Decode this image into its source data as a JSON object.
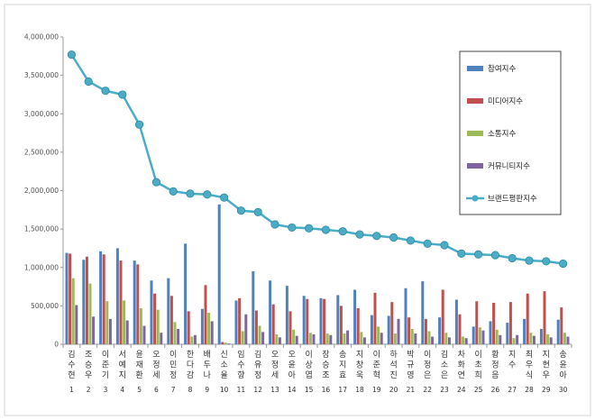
{
  "chart_data": {
    "type": "bar",
    "title": "",
    "xlabel": "",
    "ylabel": "",
    "ylim": [
      0,
      4000000
    ],
    "yticks": [
      "0",
      "500,000",
      "1,000,000",
      "1,500,000",
      "2,000,000",
      "2,500,000",
      "3,000,000",
      "3,500,000",
      "4,000,000"
    ],
    "grid": false,
    "legend_position": "right",
    "categories": [
      "김수현",
      "조승우",
      "이준기",
      "서예지",
      "윤재환",
      "오정세",
      "이민정",
      "한다감",
      "배두나",
      "신소율",
      "임수향",
      "김유정",
      "오정세",
      "오윤아",
      "이상엽",
      "장승조",
      "송지효",
      "지창욱",
      "이준혁",
      "하석진",
      "박규영",
      "이정은",
      "김소은",
      "차화연",
      "이초희",
      "황정음",
      "지수",
      "최우식",
      "지현우",
      "송윤아"
    ],
    "ranks": [
      "1",
      "2",
      "3",
      "4",
      "5",
      "6",
      "7",
      "8",
      "9",
      "10",
      "11",
      "12",
      "13",
      "14",
      "15",
      "16",
      "17",
      "18",
      "19",
      "20",
      "21",
      "22",
      "23",
      "24",
      "25",
      "26",
      "27",
      "28",
      "29",
      "30"
    ],
    "series": [
      {
        "name": "참여지수",
        "color": "#4F81BD",
        "values": [
          1190000,
          1100000,
          1210000,
          1250000,
          1090000,
          830000,
          860000,
          1310000,
          460000,
          1820000,
          570000,
          950000,
          830000,
          760000,
          630000,
          600000,
          640000,
          710000,
          380000,
          370000,
          730000,
          820000,
          350000,
          580000,
          230000,
          300000,
          280000,
          330000,
          200000,
          320000
        ]
      },
      {
        "name": "미디어지수",
        "color": "#C0504D",
        "values": [
          1180000,
          1140000,
          1170000,
          1090000,
          1040000,
          660000,
          630000,
          430000,
          770000,
          30000,
          600000,
          440000,
          520000,
          430000,
          590000,
          590000,
          500000,
          470000,
          670000,
          550000,
          350000,
          330000,
          710000,
          390000,
          560000,
          540000,
          550000,
          660000,
          690000,
          480000
        ]
      },
      {
        "name": "소통지수",
        "color": "#9BBB59",
        "values": [
          860000,
          790000,
          560000,
          570000,
          470000,
          450000,
          290000,
          100000,
          410000,
          20000,
          170000,
          240000,
          130000,
          190000,
          150000,
          140000,
          140000,
          160000,
          230000,
          140000,
          200000,
          170000,
          150000,
          100000,
          220000,
          190000,
          80000,
          150000,
          130000,
          150000
        ]
      },
      {
        "name": "커뮤니티지수",
        "color": "#8064A2",
        "values": [
          510000,
          360000,
          330000,
          310000,
          240000,
          150000,
          200000,
          120000,
          300000,
          10000,
          390000,
          160000,
          90000,
          110000,
          130000,
          120000,
          180000,
          90000,
          150000,
          330000,
          140000,
          100000,
          90000,
          80000,
          180000,
          120000,
          120000,
          110000,
          90000,
          100000
        ]
      },
      {
        "name": "브랜드평판지수",
        "color": "#4BACC6",
        "kind": "line",
        "values": [
          3770000,
          3420000,
          3300000,
          3250000,
          2860000,
          2110000,
          1990000,
          1960000,
          1950000,
          1910000,
          1740000,
          1720000,
          1560000,
          1520000,
          1510000,
          1490000,
          1470000,
          1430000,
          1410000,
          1390000,
          1350000,
          1310000,
          1290000,
          1180000,
          1170000,
          1160000,
          1120000,
          1090000,
          1080000,
          1050000
        ]
      }
    ]
  }
}
